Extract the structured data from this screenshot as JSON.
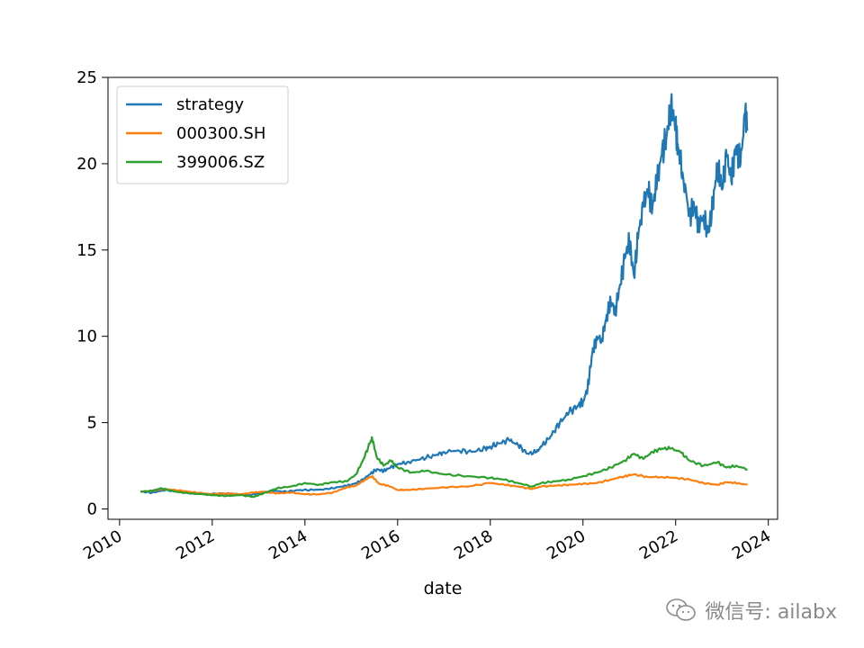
{
  "chart_data": {
    "type": "line",
    "xlabel": "date",
    "ylabel": "",
    "xlim": [
      2009.75,
      2024.2
    ],
    "ylim": [
      -0.6,
      25
    ],
    "xticks": [
      2010,
      2012,
      2014,
      2016,
      2018,
      2020,
      2022,
      2024
    ],
    "yticks": [
      0,
      5,
      10,
      15,
      20,
      25
    ],
    "legend_position": "upper-left",
    "grid": false,
    "series": [
      {
        "name": "strategy",
        "color": "#1f77b4",
        "x": [
          2010.45,
          2010.7,
          2011.0,
          2011.3,
          2011.6,
          2011.9,
          2012.2,
          2012.5,
          2012.8,
          2013.0,
          2013.3,
          2013.6,
          2013.9,
          2014.2,
          2014.5,
          2014.8,
          2015.0,
          2015.2,
          2015.4,
          2015.55,
          2015.7,
          2015.85,
          2016.0,
          2016.2,
          2016.5,
          2016.8,
          2017.0,
          2017.3,
          2017.6,
          2017.9,
          2018.0,
          2018.2,
          2018.4,
          2018.6,
          2018.8,
          2019.0,
          2019.1,
          2019.3,
          2019.5,
          2019.7,
          2019.9,
          2020.0,
          2020.1,
          2020.2,
          2020.3,
          2020.4,
          2020.5,
          2020.6,
          2020.7,
          2020.8,
          2020.9,
          2021.0,
          2021.1,
          2021.2,
          2021.3,
          2021.4,
          2021.5,
          2021.6,
          2021.7,
          2021.8,
          2021.9,
          2022.0,
          2022.05,
          2022.15,
          2022.3,
          2022.4,
          2022.5,
          2022.6,
          2022.7,
          2022.8,
          2022.9,
          2023.0,
          2023.1,
          2023.2,
          2023.3,
          2023.4,
          2023.5,
          2023.55
        ],
        "y": [
          1.0,
          0.95,
          1.1,
          1.0,
          0.9,
          0.85,
          0.9,
          0.85,
          0.8,
          0.9,
          1.05,
          1.0,
          1.1,
          1.1,
          1.15,
          1.3,
          1.4,
          1.6,
          2.0,
          2.3,
          2.2,
          2.4,
          2.6,
          2.7,
          2.9,
          3.1,
          3.3,
          3.4,
          3.3,
          3.5,
          3.6,
          3.8,
          4.0,
          3.7,
          3.2,
          3.3,
          3.6,
          4.2,
          5.0,
          5.6,
          6.0,
          6.2,
          7.0,
          9.0,
          10.0,
          9.8,
          11.0,
          12.0,
          11.5,
          13.0,
          14.5,
          15.5,
          13.5,
          16.0,
          17.5,
          18.5,
          17.5,
          19.0,
          20.5,
          21.5,
          23.5,
          22.0,
          21.0,
          19.5,
          17.0,
          17.5,
          16.5,
          17.0,
          16.0,
          17.5,
          20.0,
          18.5,
          20.5,
          19.0,
          21.0,
          20.0,
          23.0,
          22.0
        ]
      },
      {
        "name": "000300.SH",
        "color": "#ff7f0e",
        "x": [
          2010.45,
          2010.7,
          2010.9,
          2011.2,
          2011.5,
          2011.8,
          2012.0,
          2012.3,
          2012.6,
          2012.9,
          2013.1,
          2013.4,
          2013.7,
          2014.0,
          2014.3,
          2014.6,
          2014.9,
          2015.1,
          2015.3,
          2015.45,
          2015.6,
          2015.8,
          2016.0,
          2016.2,
          2016.5,
          2017.0,
          2017.5,
          2018.0,
          2018.3,
          2018.6,
          2018.9,
          2019.1,
          2019.4,
          2019.7,
          2020.0,
          2020.3,
          2020.6,
          2020.9,
          2021.1,
          2021.4,
          2021.7,
          2022.0,
          2022.3,
          2022.6,
          2022.9,
          2023.1,
          2023.3,
          2023.55
        ],
        "y": [
          1.0,
          1.05,
          1.15,
          1.1,
          1.0,
          0.9,
          0.85,
          0.9,
          0.85,
          0.95,
          1.0,
          0.9,
          0.95,
          0.85,
          0.85,
          0.95,
          1.25,
          1.35,
          1.7,
          1.9,
          1.45,
          1.35,
          1.1,
          1.1,
          1.15,
          1.25,
          1.3,
          1.5,
          1.4,
          1.3,
          1.15,
          1.3,
          1.35,
          1.4,
          1.45,
          1.5,
          1.7,
          1.9,
          2.0,
          1.85,
          1.85,
          1.8,
          1.7,
          1.5,
          1.4,
          1.55,
          1.5,
          1.4
        ]
      },
      {
        "name": "399006.SZ",
        "color": "#2ca02c",
        "x": [
          2010.45,
          2010.7,
          2010.9,
          2011.2,
          2011.5,
          2011.8,
          2012.0,
          2012.3,
          2012.6,
          2012.9,
          2013.1,
          2013.4,
          2013.7,
          2014.0,
          2014.3,
          2014.6,
          2014.9,
          2015.1,
          2015.25,
          2015.4,
          2015.45,
          2015.55,
          2015.7,
          2015.85,
          2016.0,
          2016.3,
          2016.6,
          2017.0,
          2017.5,
          2018.0,
          2018.3,
          2018.6,
          2018.9,
          2019.1,
          2019.4,
          2019.7,
          2020.0,
          2020.3,
          2020.6,
          2020.9,
          2021.1,
          2021.3,
          2021.5,
          2021.7,
          2021.9,
          2022.1,
          2022.3,
          2022.6,
          2022.9,
          2023.1,
          2023.3,
          2023.55
        ],
        "y": [
          1.0,
          1.05,
          1.2,
          1.0,
          0.9,
          0.85,
          0.8,
          0.75,
          0.8,
          0.7,
          0.9,
          1.2,
          1.3,
          1.5,
          1.4,
          1.55,
          1.6,
          2.0,
          2.8,
          3.8,
          4.1,
          3.0,
          2.5,
          2.8,
          2.4,
          2.1,
          2.2,
          2.0,
          1.9,
          1.8,
          1.7,
          1.5,
          1.3,
          1.5,
          1.6,
          1.7,
          1.9,
          2.1,
          2.4,
          2.8,
          3.2,
          2.9,
          3.3,
          3.5,
          3.5,
          3.3,
          2.8,
          2.5,
          2.7,
          2.4,
          2.5,
          2.3
        ]
      }
    ]
  },
  "watermark": {
    "text": "微信号: ailabx",
    "icon": "wechat-icon"
  }
}
